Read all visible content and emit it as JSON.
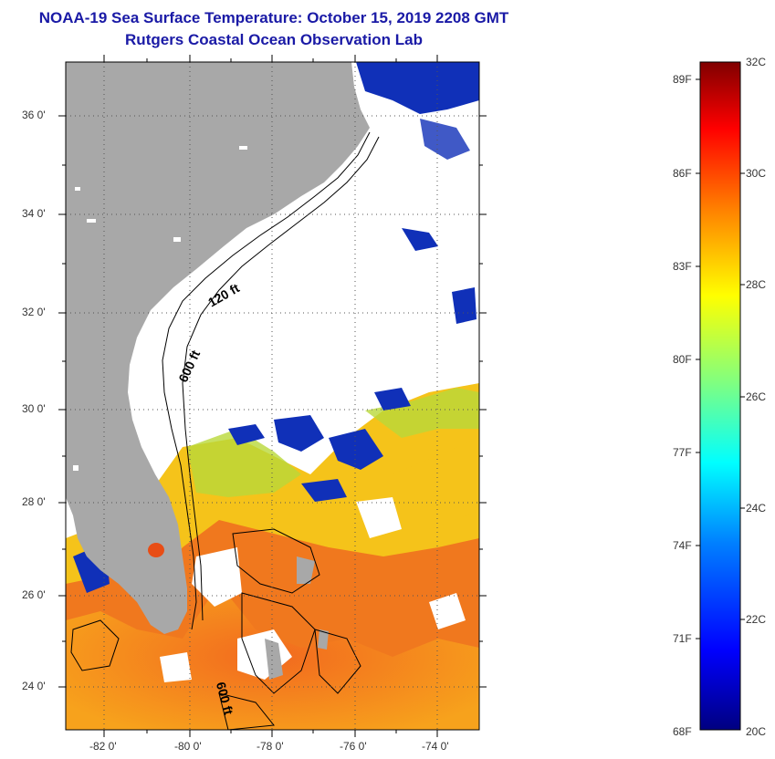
{
  "title_line1": "NOAA-19 Sea Surface Temperature:  October 15, 2019 2208 GMT",
  "title_line2": "Rutgers Coastal Ocean Observation Lab",
  "map": {
    "lat_labels": [
      "36 0'",
      "34 0'",
      "32 0'",
      "30 0'",
      "28 0'",
      "26 0'",
      "24 0'"
    ],
    "lon_labels": [
      "-82 0'",
      "-80 0'",
      "-78 0'",
      "-76 0'",
      "-74 0'"
    ],
    "contour_labels": [
      "120 ft",
      "600 ft",
      "600 ft"
    ]
  },
  "colorbar": {
    "fahrenheit": [
      "89F",
      "86F",
      "83F",
      "80F",
      "77F",
      "74F",
      "71F",
      "68F"
    ],
    "celsius": [
      "32C",
      "30C",
      "28C",
      "26C",
      "24C",
      "22C",
      "20C"
    ],
    "colors": [
      "#000080",
      "#0000ff",
      "#0080ff",
      "#00ffff",
      "#80ff80",
      "#ffff00",
      "#ff8000",
      "#ff0000",
      "#800000"
    ]
  }
}
